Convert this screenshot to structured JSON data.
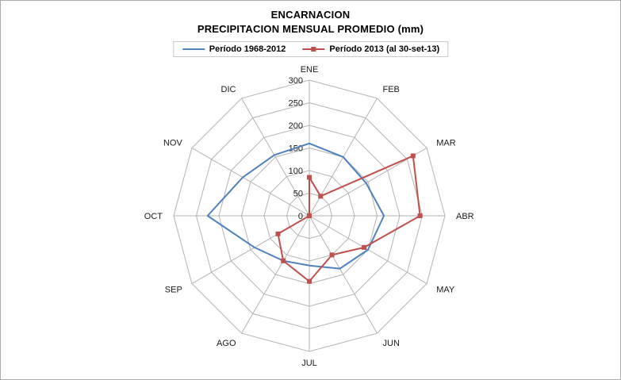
{
  "chart": {
    "title_line1": "ENCARNACION",
    "title_line2": "PRECIPITACION MENSUAL PROMEDIO (mm)",
    "legend": [
      {
        "label": "Período 1968-2012",
        "color": "#4F81BD",
        "marker": "none"
      },
      {
        "label": "Período 2013 (al 30-set-13)",
        "color": "#C0504D",
        "marker": "square"
      }
    ]
  },
  "chart_data": {
    "type": "radar",
    "title": "ENCARNACION - PRECIPITACION MENSUAL PROMEDIO (mm)",
    "categories": [
      "ENE",
      "FEB",
      "MAR",
      "ABR",
      "MAY",
      "JUN",
      "JUL",
      "AGO",
      "SEP",
      "OCT",
      "NOV",
      "DIC"
    ],
    "series": [
      {
        "name": "Período 1968-2012",
        "color": "#4F81BD",
        "marker": "none",
        "values": [
          160,
          150,
          145,
          165,
          150,
          135,
          110,
          115,
          140,
          225,
          170,
          155
        ]
      },
      {
        "name": "Período 2013 (al 30-set-13)",
        "color": "#C0504D",
        "marker": "square",
        "values": [
          85,
          50,
          265,
          245,
          140,
          100,
          145,
          115,
          80,
          0,
          0,
          0
        ]
      }
    ],
    "radial_axis": {
      "min": 0,
      "max": 300,
      "step": 50,
      "tick_labels": [
        "0",
        "50",
        "100",
        "150",
        "200",
        "250",
        "300"
      ]
    },
    "grid": true,
    "grid_color": "#B3B3B3",
    "legend_position": "top"
  }
}
